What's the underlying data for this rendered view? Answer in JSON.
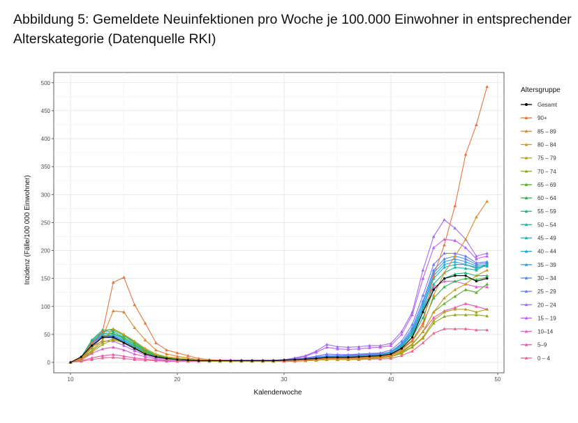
{
  "figure": {
    "title": "Abbildung 5: Gemeldete Neuinfektionen pro Woche je 100.000 Einwohner in entsprechender Alterskategorie (Datenquelle RKI)"
  },
  "chart_data": {
    "type": "line",
    "title": "Abbildung 5: Gemeldete Neuinfektionen pro Woche je 100.000 Einwohner in entsprechender Alterskategorie (Datenquelle RKI)",
    "xlabel": "Kalenderwoche",
    "ylabel": "Inzidenz (Fälle/100 000 Einwohner)",
    "xlim": [
      10,
      49
    ],
    "ylim": [
      0,
      500
    ],
    "xticks": [
      10,
      20,
      30,
      40,
      50
    ],
    "yticks": [
      0,
      50,
      100,
      150,
      200,
      250,
      300,
      350,
      400,
      450,
      500
    ],
    "grid": true,
    "legend_title": "Altersgruppe",
    "legend_position": "right",
    "x": [
      10,
      11,
      12,
      13,
      14,
      15,
      16,
      17,
      18,
      19,
      20,
      21,
      22,
      23,
      24,
      25,
      26,
      27,
      28,
      29,
      30,
      31,
      32,
      33,
      34,
      35,
      36,
      37,
      38,
      39,
      40,
      41,
      42,
      43,
      44,
      45,
      46,
      47,
      48,
      49
    ],
    "series": [
      {
        "name": "Gesamt",
        "color": "#000000",
        "values": [
          0,
          10,
          30,
          45,
          45,
          35,
          25,
          15,
          10,
          7,
          5,
          4,
          3,
          3,
          3,
          3,
          3,
          3,
          3,
          3,
          4,
          5,
          6,
          7,
          9,
          9,
          9,
          10,
          11,
          12,
          15,
          25,
          45,
          90,
          130,
          150,
          155,
          155,
          145,
          150
        ]
      },
      {
        "name": "90+",
        "color": "#e7733f",
        "values": [
          0,
          8,
          35,
          55,
          143,
          152,
          103,
          70,
          35,
          22,
          17,
          12,
          7,
          5,
          4,
          3,
          3,
          3,
          3,
          3,
          4,
          4,
          5,
          6,
          8,
          8,
          8,
          9,
          10,
          11,
          14,
          24,
          40,
          70,
          155,
          210,
          280,
          372,
          425,
          493
        ]
      },
      {
        "name": "85 – 89",
        "color": "#db8a2e",
        "values": [
          0,
          7,
          28,
          45,
          92,
          90,
          62,
          40,
          22,
          15,
          11,
          8,
          5,
          4,
          3,
          3,
          3,
          3,
          3,
          3,
          3,
          4,
          4,
          5,
          7,
          7,
          7,
          8,
          9,
          10,
          13,
          22,
          38,
          65,
          120,
          160,
          190,
          220,
          260,
          288
        ]
      },
      {
        "name": "80 – 84",
        "color": "#c89a20",
        "values": [
          0,
          6,
          22,
          40,
          60,
          50,
          38,
          25,
          15,
          10,
          8,
          6,
          4,
          3,
          3,
          3,
          3,
          3,
          3,
          3,
          3,
          3,
          4,
          5,
          6,
          6,
          6,
          7,
          8,
          9,
          12,
          20,
          33,
          55,
          90,
          115,
          130,
          140,
          155,
          165
        ]
      },
      {
        "name": "75 – 79",
        "color": "#b0a21c",
        "values": [
          0,
          5,
          18,
          32,
          40,
          35,
          25,
          16,
          10,
          7,
          5,
          4,
          3,
          3,
          2,
          2,
          2,
          2,
          2,
          2,
          3,
          3,
          3,
          4,
          5,
          5,
          5,
          6,
          7,
          8,
          10,
          17,
          28,
          45,
          75,
          90,
          95,
          95,
          90,
          95
        ]
      },
      {
        "name": "70 – 74",
        "color": "#8fa91e",
        "values": [
          0,
          5,
          20,
          36,
          42,
          36,
          26,
          17,
          10,
          7,
          5,
          4,
          3,
          2,
          2,
          2,
          2,
          2,
          2,
          2,
          3,
          3,
          3,
          4,
          5,
          5,
          5,
          6,
          7,
          8,
          10,
          16,
          27,
          43,
          70,
          82,
          85,
          85,
          85,
          83
        ]
      },
      {
        "name": "65 – 69",
        "color": "#5aae2a",
        "values": [
          0,
          6,
          26,
          45,
          52,
          44,
          32,
          20,
          12,
          8,
          6,
          4,
          3,
          3,
          2,
          2,
          2,
          2,
          2,
          2,
          3,
          3,
          3,
          4,
          5,
          5,
          5,
          6,
          7,
          8,
          10,
          18,
          32,
          55,
          90,
          105,
          118,
          130,
          125,
          140
        ]
      },
      {
        "name": "60 – 64",
        "color": "#2fb24a",
        "values": [
          0,
          8,
          35,
          55,
          60,
          50,
          36,
          23,
          13,
          9,
          6,
          5,
          3,
          3,
          3,
          3,
          3,
          3,
          3,
          3,
          3,
          3,
          4,
          5,
          6,
          6,
          6,
          7,
          8,
          9,
          12,
          22,
          40,
          70,
          115,
          135,
          145,
          150,
          148,
          152
        ]
      },
      {
        "name": "55 – 59",
        "color": "#1fb479",
        "values": [
          0,
          9,
          40,
          58,
          58,
          48,
          34,
          22,
          13,
          9,
          6,
          5,
          4,
          3,
          3,
          3,
          3,
          3,
          3,
          3,
          3,
          4,
          4,
          5,
          7,
          7,
          7,
          8,
          9,
          10,
          13,
          25,
          45,
          80,
          130,
          150,
          158,
          160,
          155,
          155
        ]
      },
      {
        "name": "50 – 54",
        "color": "#1db39d",
        "values": [
          0,
          9,
          40,
          55,
          55,
          45,
          32,
          20,
          12,
          8,
          6,
          5,
          4,
          3,
          3,
          3,
          3,
          3,
          3,
          3,
          3,
          4,
          5,
          6,
          8,
          8,
          8,
          9,
          10,
          11,
          14,
          27,
          50,
          90,
          140,
          160,
          170,
          168,
          165,
          175
        ]
      },
      {
        "name": "45 – 49",
        "color": "#21b0bd",
        "values": [
          0,
          8,
          38,
          52,
          52,
          42,
          30,
          19,
          11,
          8,
          6,
          5,
          4,
          3,
          3,
          3,
          3,
          3,
          3,
          3,
          3,
          4,
          5,
          6,
          9,
          9,
          9,
          10,
          11,
          12,
          15,
          28,
          52,
          95,
          150,
          170,
          175,
          175,
          168,
          175
        ]
      },
      {
        "name": "40 – 44",
        "color": "#29a8d8",
        "values": [
          0,
          8,
          37,
          50,
          50,
          40,
          28,
          18,
          11,
          8,
          6,
          5,
          4,
          3,
          3,
          3,
          3,
          3,
          3,
          3,
          4,
          5,
          6,
          7,
          10,
          10,
          10,
          11,
          12,
          13,
          17,
          30,
          55,
          100,
          155,
          175,
          180,
          175,
          170,
          172
        ]
      },
      {
        "name": "35 – 39",
        "color": "#3a9be6",
        "values": [
          0,
          8,
          36,
          48,
          48,
          38,
          27,
          17,
          10,
          7,
          6,
          5,
          4,
          3,
          3,
          3,
          3,
          3,
          3,
          3,
          4,
          5,
          6,
          8,
          11,
          11,
          11,
          12,
          13,
          14,
          18,
          32,
          58,
          105,
          160,
          180,
          185,
          180,
          172,
          175
        ]
      },
      {
        "name": "30 – 34",
        "color": "#4d8af0",
        "values": [
          0,
          8,
          35,
          47,
          47,
          37,
          26,
          16,
          10,
          7,
          6,
          5,
          4,
          3,
          3,
          3,
          3,
          3,
          3,
          3,
          4,
          5,
          7,
          9,
          12,
          12,
          12,
          13,
          14,
          15,
          19,
          34,
          62,
          110,
          165,
          185,
          190,
          185,
          175,
          178
        ]
      },
      {
        "name": "25 – 29",
        "color": "#6e7cf2",
        "values": [
          0,
          7,
          34,
          46,
          46,
          36,
          25,
          16,
          10,
          7,
          6,
          5,
          4,
          3,
          3,
          3,
          3,
          3,
          3,
          3,
          4,
          6,
          8,
          11,
          15,
          14,
          14,
          15,
          16,
          17,
          22,
          38,
          68,
          120,
          175,
          195,
          195,
          190,
          178,
          180
        ]
      },
      {
        "name": "20 – 24",
        "color": "#9b6ef0",
        "values": [
          0,
          7,
          32,
          44,
          44,
          34,
          24,
          15,
          9,
          7,
          6,
          5,
          4,
          4,
          4,
          4,
          4,
          4,
          4,
          4,
          5,
          8,
          12,
          20,
          32,
          28,
          27,
          28,
          30,
          30,
          34,
          55,
          90,
          165,
          225,
          255,
          240,
          220,
          190,
          195
        ]
      },
      {
        "name": "15 – 19",
        "color": "#c060ea",
        "values": [
          0,
          6,
          28,
          38,
          38,
          30,
          21,
          13,
          8,
          6,
          5,
          4,
          4,
          4,
          4,
          4,
          4,
          4,
          4,
          4,
          5,
          7,
          11,
          18,
          27,
          24,
          23,
          24,
          26,
          27,
          30,
          50,
          85,
          150,
          205,
          220,
          218,
          205,
          185,
          190
        ]
      },
      {
        "name": "10–14",
        "color": "#dd5ccf",
        "values": [
          0,
          4,
          16,
          24,
          27,
          22,
          15,
          10,
          6,
          4,
          3,
          3,
          3,
          3,
          3,
          3,
          3,
          3,
          3,
          3,
          4,
          5,
          7,
          10,
          15,
          14,
          13,
          14,
          15,
          16,
          18,
          30,
          55,
          95,
          135,
          145,
          145,
          140,
          135,
          135
        ]
      },
      {
        "name": "5–9",
        "color": "#e85aa8",
        "values": [
          0,
          3,
          8,
          12,
          14,
          11,
          8,
          6,
          4,
          3,
          2,
          2,
          2,
          2,
          2,
          2,
          2,
          2,
          2,
          2,
          3,
          3,
          4,
          6,
          8,
          8,
          7,
          8,
          9,
          9,
          10,
          18,
          32,
          55,
          80,
          92,
          98,
          105,
          100,
          95
        ]
      },
      {
        "name": "0 – 4",
        "color": "#e7648a",
        "values": [
          0,
          2,
          5,
          8,
          9,
          7,
          5,
          4,
          3,
          2,
          2,
          2,
          2,
          2,
          2,
          2,
          2,
          2,
          2,
          2,
          2,
          2,
          3,
          4,
          5,
          5,
          5,
          5,
          6,
          6,
          7,
          12,
          20,
          35,
          52,
          60,
          60,
          60,
          58,
          58
        ]
      }
    ]
  }
}
